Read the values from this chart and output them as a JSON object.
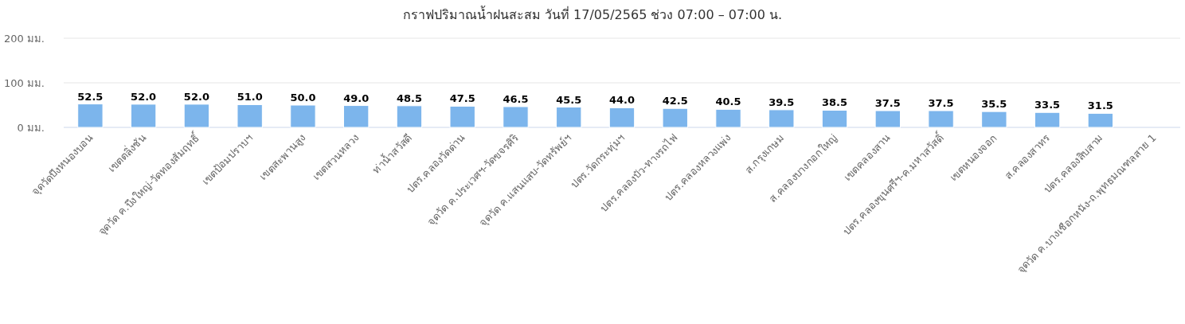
{
  "chart_data": {
    "type": "bar",
    "title": "กราฟปริมาณน้ำฝนสะสม วันที่ 17/05/2565 ช่วง 07:00 – 07:00 น.",
    "categories": [
      "จุดวัดบึงหนองบอน",
      "เขตตลิ่งชัน",
      "จุดวัด ค.บึงใหญ่-วัดทองสัมฤทธิ์",
      "เขตป้อมปราบฯ",
      "เขตสะพานสูง",
      "เขตสวนหลวง",
      "ท่าน้ำสวัสดี",
      "ปตร.คลองวัดด่าน",
      "จุดวัด ค.ประเวศฯ-วัดขจรศิริ",
      "จุดวัด ค.แสนแสบ-วัดทรัพย์ฯ",
      "ปตร.วัดกระทุ่มฯ",
      "ปตร.คลองบัว-ทางรถไฟ",
      "ปตร.คลองหลวงแพ่ง",
      "ส.กรุงเกษม",
      "ส.คลองบางกอกใหญ่",
      "เขตคลองสาน",
      "ปตร.คลองขุนศรีฯ-ค.มหาสวัสดิ์",
      "เขตหนองจอก",
      "ส.คลองสาทร",
      "ปตร.คลองสิบสาม",
      "จุดวัด ค.บางเชือกหนัง-ถ.พุทธมณฑลสาย 1"
    ],
    "values": [
      52.5,
      52.0,
      52.0,
      51.0,
      50.0,
      49.0,
      48.5,
      47.5,
      46.5,
      45.5,
      44.0,
      42.5,
      40.5,
      39.5,
      38.5,
      37.5,
      37.5,
      35.5,
      33.5,
      31.5,
      null
    ],
    "value_labels": [
      "52.5",
      "52.0",
      "52.0",
      "51.0",
      "50.0",
      "49.0",
      "48.5",
      "47.5",
      "46.5",
      "45.5",
      "44.0",
      "42.5",
      "40.5",
      "39.5",
      "38.5",
      "37.5",
      "37.5",
      "35.5",
      "33.5",
      "31.5",
      null
    ],
    "color": "#7cb5ec",
    "ylim": [
      0,
      200
    ],
    "yticks": [
      {
        "value": 0,
        "label": "0 มม."
      },
      {
        "value": 100,
        "label": "100 มม."
      },
      {
        "value": 200,
        "label": "200 มม."
      }
    ],
    "grid": "y"
  }
}
